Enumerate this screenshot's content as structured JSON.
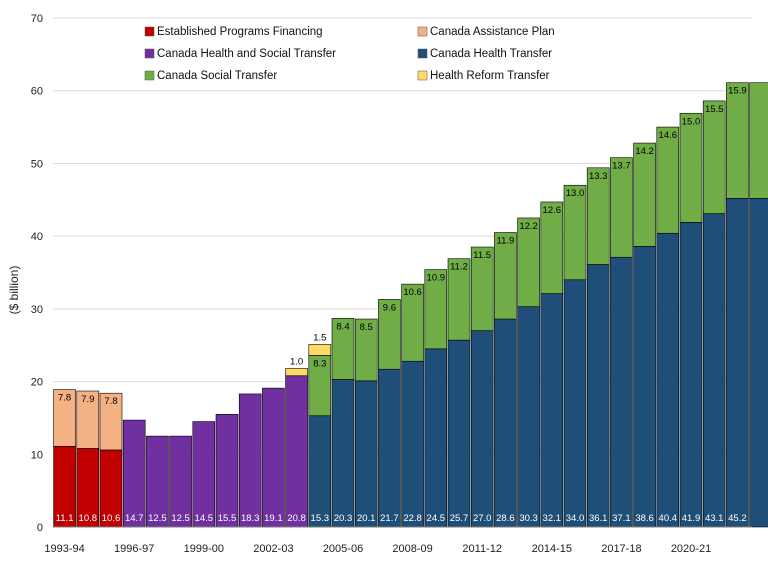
{
  "chart_data": {
    "type": "bar",
    "stacked": true,
    "ylabel": "($ billion)",
    "ylim": [
      0,
      70
    ],
    "yticks": [
      "0",
      "10",
      "20",
      "30",
      "40",
      "50",
      "60",
      "70"
    ],
    "x_tick_labels": [
      "1993-94",
      "1996-97",
      "1999-00",
      "2002-03",
      "2005-06",
      "2008-09",
      "2011-12",
      "2014-15",
      "2017-18",
      "2020-21"
    ],
    "x_tick_label_every": 3,
    "legend_placement": "top, two columns",
    "bar_count": 31,
    "series": [
      {
        "name": "Established Programs Financing",
        "color": "#c00000",
        "label_color": "#ffffff",
        "values": [
          11.1,
          10.8,
          10.6,
          0,
          0,
          0,
          0,
          0,
          0,
          0,
          0,
          0,
          0,
          0,
          0,
          0,
          0,
          0,
          0,
          0,
          0,
          0,
          0,
          0,
          0,
          0,
          0,
          0,
          0,
          0,
          0
        ],
        "labels": [
          "11.1",
          "10.8",
          "10.6",
          "",
          "",
          "",
          "",
          "",
          "",
          "",
          "",
          "",
          "",
          "",
          "",
          "",
          "",
          "",
          "",
          "",
          "",
          "",
          "",
          "",
          "",
          "",
          "",
          "",
          "",
          "",
          ""
        ]
      },
      {
        "name": "Canada Assistance Plan",
        "color": "#f4b183",
        "label_color": "#000000",
        "values": [
          7.8,
          7.9,
          7.8,
          0,
          0,
          0,
          0,
          0,
          0,
          0,
          0,
          0,
          0,
          0,
          0,
          0,
          0,
          0,
          0,
          0,
          0,
          0,
          0,
          0,
          0,
          0,
          0,
          0,
          0,
          0,
          0
        ],
        "labels": [
          "7.8",
          "7.9",
          "7.8",
          "",
          "",
          "",
          "",
          "",
          "",
          "",
          "",
          "",
          "",
          "",
          "",
          "",
          "",
          "",
          "",
          "",
          "",
          "",
          "",
          "",
          "",
          "",
          "",
          "",
          "",
          "",
          ""
        ]
      },
      {
        "name": "Canada Health and Social Transfer",
        "color": "#7030a0",
        "label_color": "#ffffff",
        "values": [
          0,
          0,
          0,
          14.7,
          12.5,
          12.5,
          14.5,
          15.5,
          18.3,
          19.1,
          20.8,
          0,
          0,
          0,
          0,
          0,
          0,
          0,
          0,
          0,
          0,
          0,
          0,
          0,
          0,
          0,
          0,
          0,
          0,
          0,
          0
        ],
        "labels": [
          "",
          "",
          "",
          "14.7",
          "12.5",
          "12.5",
          "14.5",
          "15.5",
          "18.3",
          "19.1",
          "20.8",
          "",
          "",
          "",
          "",
          "",
          "",
          "",
          "",
          "",
          "",
          "",
          "",
          "",
          "",
          "",
          "",
          "",
          "",
          "",
          ""
        ]
      },
      {
        "name": "Canada Health Transfer",
        "color": "#1f4e79",
        "label_color": "#ffffff",
        "values": [
          0,
          0,
          0,
          0,
          0,
          0,
          0,
          0,
          0,
          0,
          0,
          15.3,
          20.3,
          20.1,
          21.7,
          22.8,
          24.5,
          25.7,
          27.0,
          28.6,
          30.3,
          32.1,
          34.0,
          36.1,
          37.1,
          38.6,
          40.4,
          41.9,
          43.1,
          45.2,
          45.2
        ],
        "labels": [
          "",
          "",
          "",
          "",
          "",
          "",
          "",
          "",
          "",
          "",
          "",
          "15.3",
          "20.3",
          "20.1",
          "21.7",
          "22.8",
          "24.5",
          "25.7",
          "27.0",
          "28.6",
          "30.3",
          "32.1",
          "34.0",
          "36.1",
          "37.1",
          "38.6",
          "40.4",
          "41.9",
          "43.1",
          "45.2",
          ""
        ]
      },
      {
        "name": "Canada Social Transfer",
        "color": "#70ad47",
        "label_color": "#000000",
        "values": [
          0,
          0,
          0,
          0,
          0,
          0,
          0,
          0,
          0,
          0,
          0,
          8.3,
          8.4,
          8.5,
          9.6,
          10.6,
          10.9,
          11.2,
          11.5,
          11.9,
          12.2,
          12.6,
          13.0,
          13.3,
          13.7,
          14.2,
          14.6,
          15.0,
          15.5,
          15.9,
          15.9
        ],
        "labels": [
          "",
          "",
          "",
          "",
          "",
          "",
          "",
          "",
          "",
          "",
          "",
          "8.3",
          "8.4",
          "8.5",
          "9.6",
          "10.6",
          "10.9",
          "11.2",
          "11.5",
          "11.9",
          "12.2",
          "12.6",
          "13.0",
          "13.3",
          "13.7",
          "14.2",
          "14.6",
          "15.0",
          "15.5",
          "15.9",
          ""
        ]
      },
      {
        "name": "Health Reform Transfer",
        "color": "#ffd966",
        "label_color": "#000000",
        "values": [
          0,
          0,
          0,
          0,
          0,
          0,
          0,
          0,
          0,
          0,
          1.0,
          1.5,
          0,
          0,
          0,
          0,
          0,
          0,
          0,
          0,
          0,
          0,
          0,
          0,
          0,
          0,
          0,
          0,
          0,
          0,
          0
        ],
        "labels": [
          "",
          "",
          "",
          "",
          "",
          "",
          "",
          "",
          "",
          "",
          "1.0",
          "1.5",
          "",
          "",
          "",
          "",
          "",
          "",
          "",
          "",
          "",
          "",
          "",
          "",
          "",
          "",
          "",
          "",
          "",
          "",
          ""
        ]
      }
    ],
    "gridlines": "horizontal"
  }
}
